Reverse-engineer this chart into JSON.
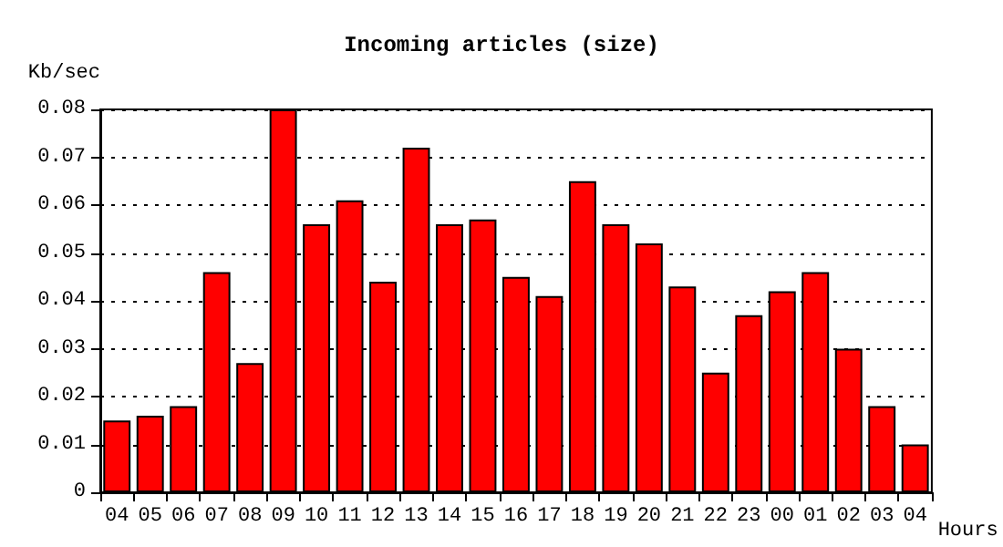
{
  "chart_data": {
    "type": "bar",
    "title": "Incoming articles (size)",
    "xlabel": "Hours",
    "ylabel": "Kb/sec",
    "categories": [
      "04",
      "05",
      "06",
      "07",
      "08",
      "09",
      "10",
      "11",
      "12",
      "13",
      "14",
      "15",
      "16",
      "17",
      "18",
      "19",
      "20",
      "21",
      "22",
      "23",
      "00",
      "01",
      "02",
      "03",
      "04"
    ],
    "values": [
      0.015,
      0.016,
      0.018,
      0.046,
      0.027,
      0.08,
      0.056,
      0.061,
      0.044,
      0.072,
      0.056,
      0.057,
      0.045,
      0.041,
      0.065,
      0.056,
      0.052,
      0.043,
      0.025,
      0.037,
      0.042,
      0.046,
      0.03,
      0.018,
      0.01
    ],
    "color": "#ff0000",
    "ylim": [
      0,
      0.08
    ],
    "yticks": [
      0,
      0.01,
      0.02,
      0.03,
      0.04,
      0.05,
      0.06,
      0.07,
      0.08
    ],
    "grid": "y"
  }
}
